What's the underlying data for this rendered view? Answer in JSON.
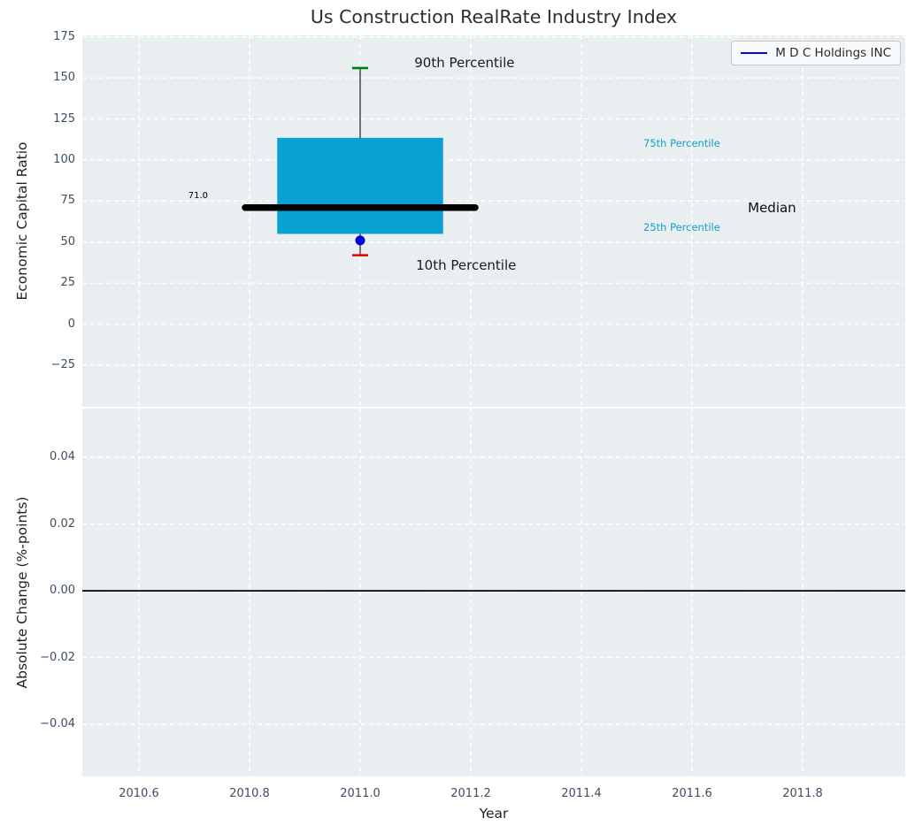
{
  "figure_title": "Us Construction RealRate Industry Index",
  "chart_data": [
    {
      "type": "box",
      "panel": "top",
      "title": "Us Construction RealRate Industry Index",
      "ylabel": "Economic Capital Ratio",
      "xlim": [
        2010.4976,
        2011.9856
      ],
      "ylim": [
        -50.3,
        175.9
      ],
      "grid": "white-dashed",
      "yticks": {
        "values": [
          175,
          150,
          125,
          100,
          75,
          50,
          25,
          0,
          -25
        ],
        "labels": [
          "175",
          "150",
          "125",
          "100",
          "75",
          "50",
          "25",
          "0",
          "−25"
        ]
      },
      "xticks": {
        "values": [
          2010.6,
          2010.8,
          2011.0,
          2011.2,
          2011.4,
          2011.6,
          2011.8
        ],
        "labels": [
          "2010.6",
          "2010.8",
          "2011.0",
          "2011.2",
          "2011.4",
          "2011.6",
          "2011.8"
        ]
      },
      "show_xtick_labels": false,
      "legend": {
        "label": "M D C Holdings INC",
        "position": "upper right"
      },
      "box": {
        "x": 2011.0,
        "p10": 42,
        "p25": 55,
        "median": 71,
        "p75": 113.5,
        "p90": 156,
        "company_value": 51,
        "box_halfwidth": 0.15,
        "median_halfwidth": 0.208,
        "cap_halfwidth": 0.0145
      },
      "annotations": [
        {
          "name": "median-value-label",
          "text": "71.0",
          "x": 2010.707,
          "y": 78.7,
          "size": 10,
          "color": "#000000",
          "anchor": "middle"
        },
        {
          "name": "p90-label",
          "text": "90th Percentile",
          "x": 2011.098,
          "y": 159.5,
          "size": 15,
          "color": "#1c1c1c",
          "anchor": "start"
        },
        {
          "name": "p10-label",
          "text": "10th Percentile",
          "x": 2011.101,
          "y": 36.0,
          "size": 15,
          "color": "#1c1c1c",
          "anchor": "start"
        },
        {
          "name": "p75-label",
          "text": "75th Percentile",
          "x": 2011.512,
          "y": 110.3,
          "size": 11.5,
          "color": "#169fc9",
          "anchor": "start"
        },
        {
          "name": "p25-label",
          "text": "25th Percentile",
          "x": 2011.512,
          "y": 59.0,
          "size": 11.5,
          "color": "#169fc9",
          "anchor": "start"
        },
        {
          "name": "median-label",
          "text": "Median",
          "x": 2011.701,
          "y": 71.0,
          "size": 15,
          "color": "#0d0d0d",
          "anchor": "start"
        }
      ],
      "colors": {
        "panel_bg": "#e9eef1",
        "grid": "#ffffff",
        "box_fill": "#09a0d4",
        "median_line": "#000000",
        "whisker": "#3d3d3d",
        "p90_cap": "#008000",
        "p10_cap": "#e60000",
        "company_dot": "#0000dd",
        "legend_line": "#0000ee",
        "tick_text": "#3f4d63",
        "title_text": "#2d2d2d"
      }
    },
    {
      "type": "line",
      "panel": "bottom",
      "ylabel": "Absolute Change (%-points)",
      "xlabel": "Year",
      "xlim": [
        2010.4976,
        2011.9856
      ],
      "ylim": [
        -0.0556,
        0.0546
      ],
      "grid": "white-dashed",
      "yticks": {
        "values": [
          0.04,
          0.02,
          0,
          -0.02,
          -0.04
        ],
        "labels": [
          "0.04",
          "0.02",
          "0.00",
          "−0.02",
          "−0.04"
        ]
      },
      "xticks": {
        "values": [
          2010.6,
          2010.8,
          2011.0,
          2011.2,
          2011.4,
          2011.6,
          2011.8
        ],
        "labels": [
          "2010.6",
          "2010.8",
          "2011.0",
          "2011.2",
          "2011.4",
          "2011.6",
          "2011.8"
        ]
      },
      "show_xtick_labels": true,
      "zero_line": 0.0,
      "series": []
    }
  ]
}
